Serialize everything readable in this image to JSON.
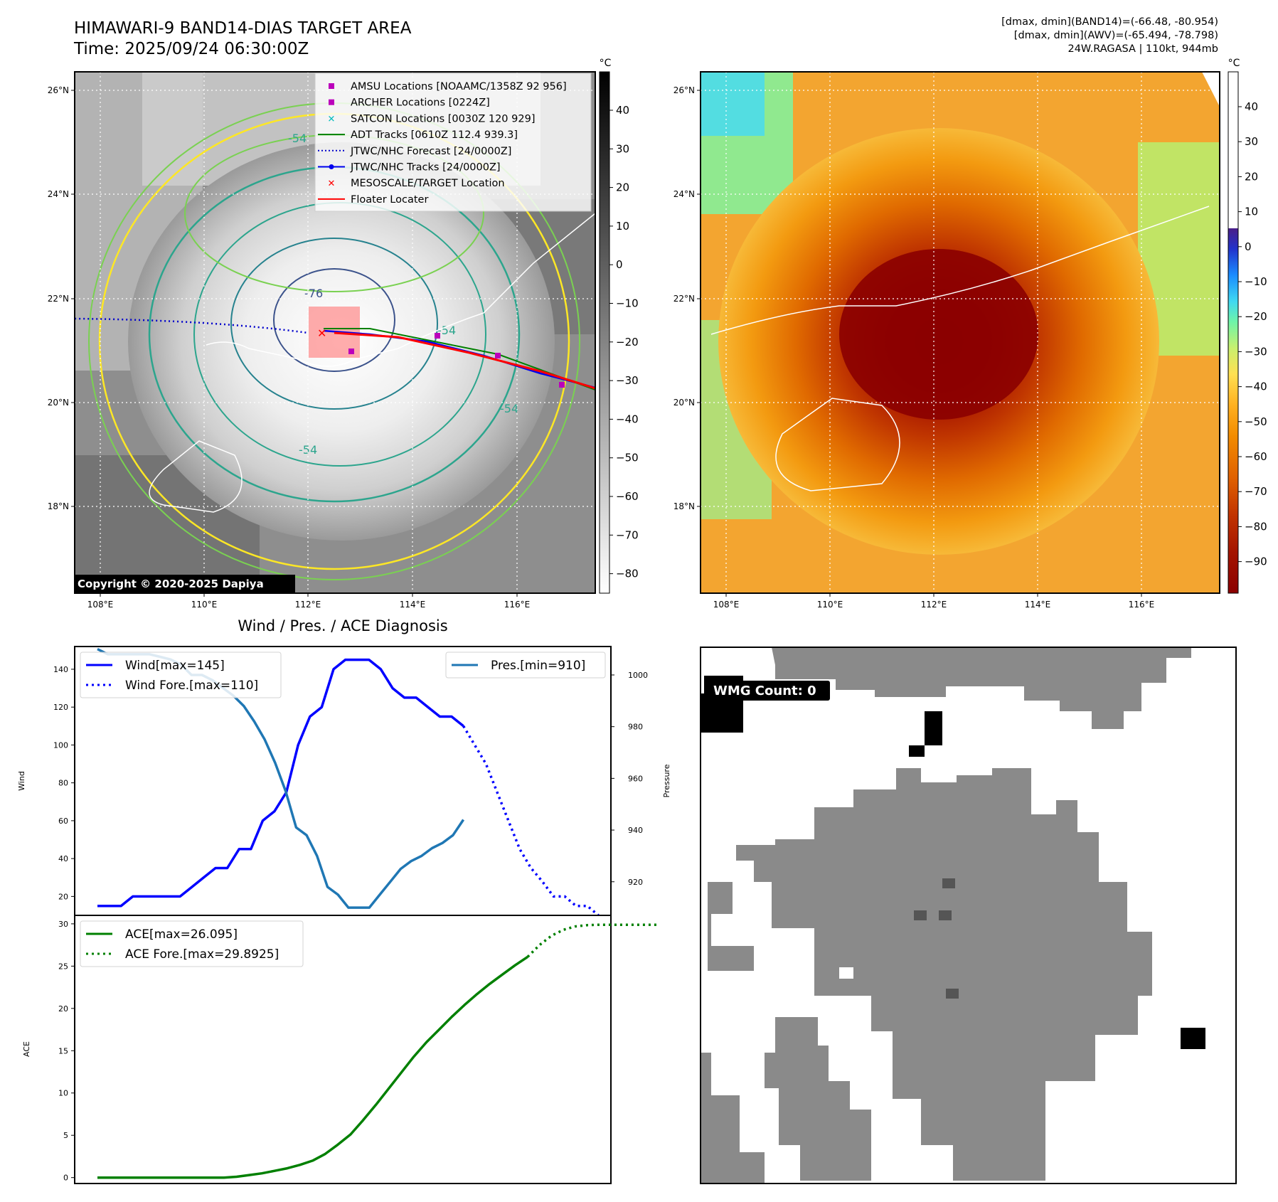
{
  "header": {
    "title_line1": "HIMAWARI-9 BAND14-DIAS TARGET AREA",
    "title_line2": "Time: 2025/09/24 06:30:00Z",
    "stats_line1": "[dmax, dmin](BAND14)=(-66.48, -80.954)",
    "stats_line2": "[dmax, dmin](AWV)=(-65.494, -78.798)",
    "stats_line3": "24W.RAGASA | 110kt, 944mb"
  },
  "map": {
    "lon_ticks": [
      "108°E",
      "110°E",
      "112°E",
      "114°E",
      "116°E"
    ],
    "lat_ticks": [
      "26°N",
      "24°N",
      "22°N",
      "20°N",
      "18°N"
    ],
    "colorbar_unit": "°C",
    "gray_colorbar_ticks": [
      "40",
      "30",
      "20",
      "10",
      "0",
      "−10",
      "−20",
      "−30",
      "−40",
      "−50",
      "−60",
      "−70",
      "−80"
    ],
    "color_colorbar_ticks": [
      "40",
      "30",
      "20",
      "10",
      "0",
      "−10",
      "−20",
      "−30",
      "−40",
      "−50",
      "−60",
      "−70",
      "−80",
      "−90"
    ],
    "contour_labels": [
      "-54",
      "-76",
      "-54",
      "-54",
      "-54"
    ],
    "copyright": "Copyright © 2020-2025 Dapiya",
    "legend": [
      {
        "label": "AMSU Locations [NOAAMC/1358Z 92 956]",
        "color": "#bb00bb",
        "marker": "square"
      },
      {
        "label": "ARCHER Locations [0224Z]",
        "color": "#bb00bb",
        "marker": "square"
      },
      {
        "label": "SATCON Locations [0030Z 120 929]",
        "color": "#00bbbb",
        "marker": "x"
      },
      {
        "label": "ADT Tracks [0610Z 112.4 939.3]",
        "color": "#008000",
        "marker": "line"
      },
      {
        "label": "JTWC/NHC Forecast [24/0000Z]",
        "color": "#0000cc",
        "marker": "dotted"
      },
      {
        "label": "JTWC/NHC Tracks [24/0000Z]",
        "color": "#0000ee",
        "marker": "line-dot"
      },
      {
        "label": "MESOSCALE/TARGET Location",
        "color": "#ff0000",
        "marker": "x"
      },
      {
        "label": "Floater Locater",
        "color": "#ff0000",
        "marker": "line"
      }
    ]
  },
  "chart_data": [
    {
      "type": "line",
      "title": "Wind / Pres. / ACE Diagnosis",
      "ylabel": "Wind",
      "y2label": "Pressure",
      "ylim": [
        10,
        152
      ],
      "y2lim": [
        907,
        1011
      ],
      "yticks": [
        20,
        40,
        60,
        80,
        100,
        120,
        140
      ],
      "y2ticks": [
        920,
        940,
        960,
        980,
        1000
      ],
      "series": [
        {
          "name": "Wind[max=145]",
          "color": "#0000ff",
          "style": "solid",
          "axis": "left",
          "values": [
            15,
            15,
            15,
            20,
            20,
            20,
            20,
            20,
            25,
            30,
            35,
            35,
            45,
            45,
            60,
            65,
            75,
            100,
            115,
            120,
            140,
            145,
            145,
            145,
            140,
            130,
            125,
            125,
            120,
            115,
            115,
            110
          ]
        },
        {
          "name": "Wind Fore.[max=110]",
          "color": "#0000ff",
          "style": "dotted",
          "axis": "left",
          "x_offset": 31,
          "values": [
            110,
            100,
            90,
            75,
            60,
            45,
            35,
            28,
            20,
            20,
            15,
            15,
            10
          ]
        },
        {
          "name": "Pres.[min=910]",
          "color": "#1f77b4",
          "style": "solid",
          "axis": "right",
          "values": [
            1010,
            1008,
            1008,
            1008,
            1008,
            1008,
            1007,
            1006,
            1004,
            1000,
            1000,
            998,
            995,
            992,
            988,
            982,
            975,
            966,
            955,
            941,
            938,
            930,
            918,
            915,
            910,
            910,
            910,
            915,
            920,
            925,
            928,
            930,
            933,
            935,
            938,
            944
          ]
        },
        {
          "name": "ACE[max=26.095]",
          "color": "#008000",
          "style": "solid",
          "axis": "ace",
          "values": [
            0,
            0,
            0,
            0,
            0,
            0,
            0,
            0,
            0,
            0,
            0,
            0.1,
            0.3,
            0.5,
            0.8,
            1.1,
            1.5,
            2.0,
            2.8,
            3.9,
            5.1,
            6.8,
            8.6,
            10.5,
            12.4,
            14.3,
            16.0,
            17.5,
            19.0,
            20.4,
            21.7,
            22.9,
            24.0,
            25.1,
            26.095
          ]
        },
        {
          "name": "ACE Fore.[max=29.8925]",
          "color": "#008000",
          "style": "dotted",
          "axis": "ace",
          "x_offset": 34,
          "values": [
            26.095,
            27.5,
            28.6,
            29.3,
            29.7,
            29.85,
            29.89,
            29.89,
            29.89,
            29.89,
            29.89,
            29.89
          ]
        }
      ]
    },
    {
      "type": "line",
      "ylabel": "ACE",
      "ylim": [
        -0.7,
        31
      ],
      "yticks": [
        0,
        5,
        10,
        15,
        20,
        25,
        30
      ]
    }
  ],
  "legend_wind": [
    "Wind[max=145]",
    "Wind Fore.[max=110]"
  ],
  "legend_pres": [
    "Pres.[min=910]"
  ],
  "legend_ace": [
    "ACE[max=26.095]",
    "ACE Fore.[max=29.8925]"
  ],
  "wmg": {
    "label": "WMG Count: 0"
  },
  "colors": {
    "cb_gray_top": "#000000",
    "cb_gray_bottom": "#ffffff",
    "cb_color": [
      "#8b0000",
      "#b32400",
      "#d44a00",
      "#ef7d00",
      "#ffaa00",
      "#ffd54a",
      "#d8f070",
      "#7ef59a",
      "#44d9f5",
      "#1a8cff",
      "#2233cc",
      "#4b1e88",
      "#ffffff"
    ]
  }
}
